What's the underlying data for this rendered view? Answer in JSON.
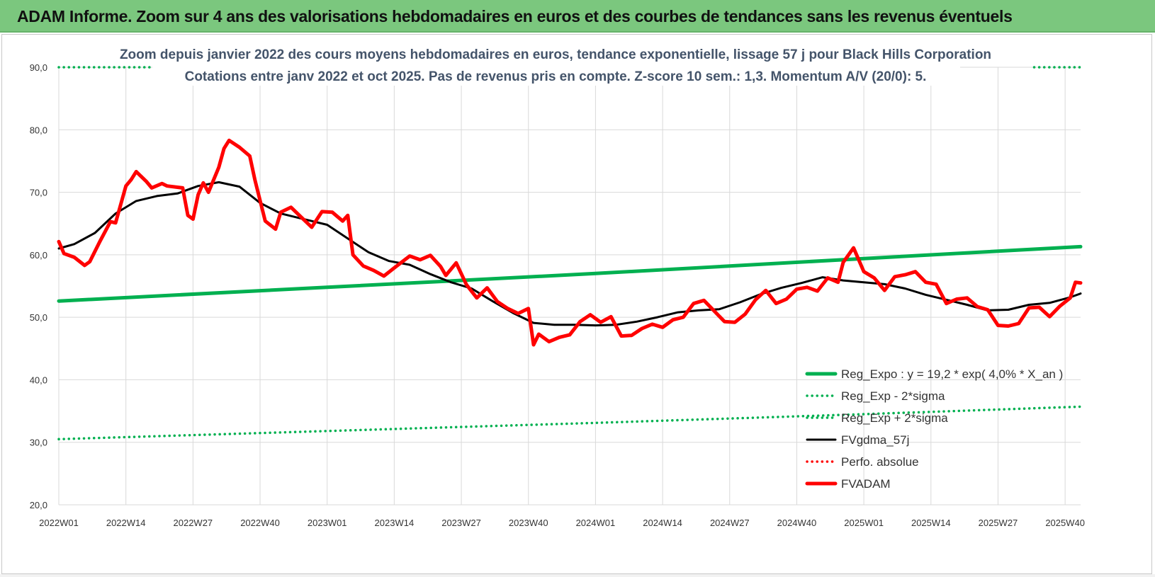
{
  "header": {
    "title": "ADAM Informe. Zoom sur 4 ans des valorisations hebdomadaires en euros et des courbes de tendances sans les revenus éventuels"
  },
  "colors": {
    "header_bg": "#7bc77e",
    "green": "#00b050",
    "black": "#000000",
    "red": "#ff0000",
    "grid": "#d9d9d9",
    "title_text": "#44546a"
  },
  "chart_data": {
    "type": "line",
    "title": "Zoom depuis janvier 2022 des cours moyens hebdomadaires en euros, tendance exponentielle, lissage 57 j pour Black Hills Corporation",
    "subtitle": "Cotations entre janv 2022 et oct 2025. Pas de revenus pris en compte. Z-score 10 sem.: 1,3. Momentum A/V (20/0): 5.",
    "xlabel": "",
    "ylabel": "",
    "ylim": [
      20,
      90
    ],
    "y_ticks": [
      "20,0",
      "30,0",
      "40,0",
      "50,0",
      "60,0",
      "70,0",
      "80,0",
      "90,0"
    ],
    "x_ticks": [
      "2022W01",
      "2022W14",
      "2022W27",
      "2022W40",
      "2023W01",
      "2023W14",
      "2023W27",
      "2023W40",
      "2024W01",
      "2024W14",
      "2024W27",
      "2024W40",
      "2025W01",
      "2025W14",
      "2025W27",
      "2025W40"
    ],
    "grid": true,
    "legend_position": "bottom-right",
    "legend": [
      {
        "label": "Reg_Expo : y = 19,2 * exp( 4,0% * X_an )",
        "color": "#00b050",
        "style": "solid-thick"
      },
      {
        "label": "Reg_Exp - 2*sigma",
        "color": "#00b050",
        "style": "dotted"
      },
      {
        "label": "Reg_Exp + 2*sigma",
        "color": "#00b050",
        "style": "dotted"
      },
      {
        "label": "FVgdma_57j",
        "color": "#000000",
        "style": "solid"
      },
      {
        "label": "Perfo. absolue",
        "color": "#ff0000",
        "style": "dotted"
      },
      {
        "label": "FVADAM",
        "color": "#ff0000",
        "style": "solid-thick"
      }
    ],
    "series": [
      {
        "name": "Reg_Expo : y = 19,2 * exp( 4,0% * X_an )",
        "x": [
          "2022W01",
          "2023W01",
          "2024W01",
          "2025W01",
          "2025W43"
        ],
        "values": [
          52.6,
          54.8,
          57.0,
          59.4,
          61.3
        ]
      },
      {
        "name": "Reg_Exp - 2*sigma",
        "x": [
          "2022W01",
          "2023W01",
          "2024W01",
          "2025W01",
          "2025W43"
        ],
        "values": [
          30.5,
          31.8,
          33.1,
          34.5,
          35.7
        ]
      },
      {
        "name": "Reg_Exp + 2*sigma",
        "x": [
          "2022W01",
          "2022W20",
          "2025W34",
          "2025W43"
        ],
        "values": [
          90.0,
          90.0,
          90.0,
          90.0
        ]
      },
      {
        "name": "FVgdma_57j",
        "x": [
          "2022W01",
          "2022W04",
          "2022W08",
          "2022W12",
          "2022W16",
          "2022W20",
          "2022W24",
          "2022W28",
          "2022W32",
          "2022W36",
          "2022W40",
          "2022W44",
          "2022W48",
          "2023W01",
          "2023W05",
          "2023W09",
          "2023W13",
          "2023W17",
          "2023W21",
          "2023W25",
          "2023W29",
          "2023W33",
          "2023W37",
          "2023W41",
          "2023W45",
          "2023W49",
          "2024W01",
          "2024W05",
          "2024W09",
          "2024W13",
          "2024W17",
          "2024W21",
          "2024W25",
          "2024W29",
          "2024W33",
          "2024W37",
          "2024W41",
          "2024W45",
          "2024W49",
          "2025W01",
          "2025W05",
          "2025W09",
          "2025W13",
          "2025W17",
          "2025W21",
          "2025W25",
          "2025W29",
          "2025W33",
          "2025W37",
          "2025W41",
          "2025W43"
        ],
        "values": [
          61.0,
          61.7,
          63.5,
          66.6,
          68.6,
          69.4,
          69.8,
          71.0,
          71.6,
          70.9,
          68.3,
          66.6,
          65.8,
          64.8,
          62.6,
          60.4,
          59.0,
          58.4,
          56.9,
          55.6,
          54.6,
          52.6,
          50.7,
          49.1,
          48.8,
          48.8,
          48.7,
          48.8,
          49.3,
          50.0,
          50.8,
          51.1,
          51.3,
          52.4,
          53.7,
          54.7,
          55.5,
          56.4,
          55.9,
          55.6,
          55.3,
          54.6,
          53.6,
          52.8,
          52.0,
          51.1,
          51.2,
          52.0,
          52.3,
          53.2,
          53.8
        ]
      },
      {
        "name": "FVADAM",
        "x": [
          "2022W01",
          "2022W02",
          "2022W04",
          "2022W06",
          "2022W07",
          "2022W09",
          "2022W11",
          "2022W12",
          "2022W14",
          "2022W15",
          "2022W16",
          "2022W18",
          "2022W19",
          "2022W21",
          "2022W22",
          "2022W25",
          "2022W26",
          "2022W27",
          "2022W28",
          "2022W29",
          "2022W30",
          "2022W32",
          "2022W33",
          "2022W34",
          "2022W36",
          "2022W38",
          "2022W39",
          "2022W41",
          "2022W43",
          "2022W44",
          "2022W46",
          "2022W48",
          "2022W50",
          "2022W52",
          "2023W02",
          "2023W04",
          "2023W05",
          "2023W06",
          "2023W08",
          "2023W10",
          "2023W12",
          "2023W14",
          "2023W17",
          "2023W19",
          "2023W21",
          "2023W23",
          "2023W24",
          "2023W26",
          "2023W28",
          "2023W30",
          "2023W32",
          "2023W34",
          "2023W36",
          "2023W38",
          "2023W40",
          "2023W41",
          "2023W42",
          "2023W44",
          "2023W46",
          "2023W48",
          "2023W50",
          "2023W52",
          "2024W02",
          "2024W04",
          "2024W06",
          "2024W08",
          "2024W10",
          "2024W12",
          "2024W14",
          "2024W16",
          "2024W18",
          "2024W20",
          "2024W22",
          "2024W24",
          "2024W26",
          "2024W28",
          "2024W30",
          "2024W32",
          "2024W34",
          "2024W36",
          "2024W38",
          "2024W40",
          "2024W42",
          "2024W44",
          "2024W46",
          "2024W48",
          "2024W49",
          "2024W51",
          "2025W01",
          "2025W03",
          "2025W05",
          "2025W07",
          "2025W09",
          "2025W11",
          "2025W13",
          "2025W15",
          "2025W17",
          "2025W19",
          "2025W21",
          "2025W23",
          "2025W25",
          "2025W27",
          "2025W29",
          "2025W31",
          "2025W33",
          "2025W35",
          "2025W37",
          "2025W39",
          "2025W41",
          "2025W42",
          "2025W43"
        ],
        "values": [
          62.1,
          60.2,
          59.6,
          58.3,
          58.9,
          62.2,
          65.3,
          65.1,
          71.0,
          72.0,
          73.3,
          71.7,
          70.7,
          71.4,
          71.0,
          70.7,
          66.3,
          65.7,
          69.6,
          71.5,
          70.0,
          74.0,
          77.0,
          78.3,
          77.2,
          75.8,
          72.0,
          65.4,
          64.1,
          66.8,
          67.6,
          66.0,
          64.4,
          66.9,
          66.8,
          65.4,
          66.3,
          60.0,
          58.2,
          57.5,
          56.6,
          57.9,
          59.8,
          59.2,
          59.9,
          58.1,
          56.7,
          58.7,
          55.2,
          53.1,
          54.7,
          52.5,
          51.4,
          50.6,
          51.4,
          45.6,
          47.3,
          46.1,
          46.8,
          47.2,
          49.3,
          50.4,
          49.2,
          50.1,
          47.0,
          47.1,
          48.2,
          48.9,
          48.4,
          49.6,
          50.0,
          52.2,
          52.7,
          51.0,
          49.3,
          49.2,
          50.5,
          52.8,
          54.3,
          52.2,
          52.9,
          54.5,
          54.8,
          54.2,
          56.3,
          55.6,
          58.8,
          61.1,
          57.3,
          56.3,
          54.3,
          56.5,
          56.8,
          57.3,
          55.6,
          55.3,
          52.2,
          52.9,
          53.1,
          51.7,
          51.2,
          48.7,
          48.6,
          49.0,
          51.5,
          51.6,
          50.1,
          51.8,
          53.1,
          55.6,
          55.5
        ]
      }
    ]
  }
}
